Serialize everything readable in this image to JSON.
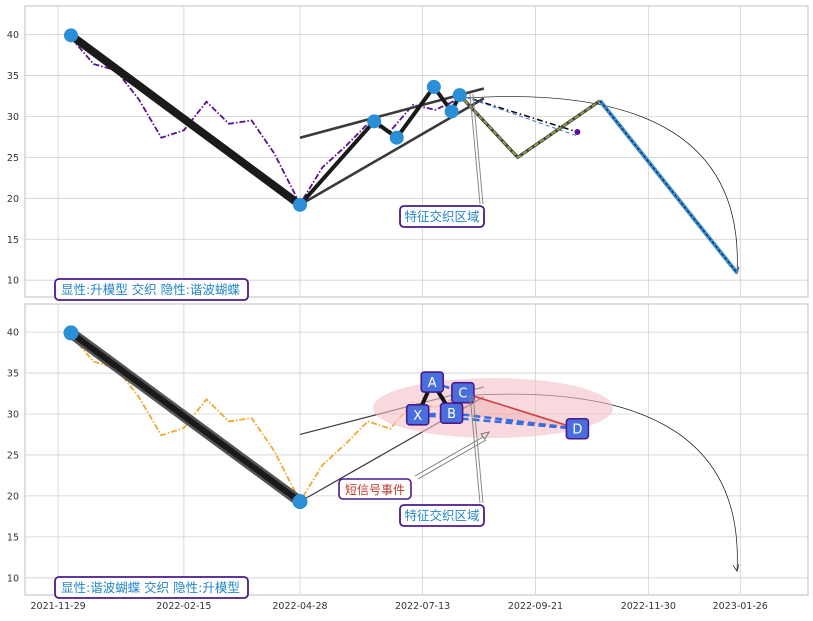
{
  "x_ticks": [
    "2021-11-29",
    "2022-02-15",
    "2022-04-28",
    "2022-07-13",
    "2022-09-21",
    "2022-11-30",
    "2023-01-26"
  ],
  "y_ticks": [
    "10",
    "15",
    "20",
    "25",
    "30",
    "35",
    "40"
  ],
  "colors": {
    "grid": "#d0d0d0",
    "frame": "#bfbfbf",
    "tick_text": "#333333",
    "thick_line": "#1a1a1a",
    "pivot_dot": "#2a8fd6",
    "top_price": "#5b0f8f",
    "bottom_price": "#f0a92d",
    "caption_text": "#2386c9",
    "caption_border": "#4a1a8c",
    "label_box": "#4a6fdc",
    "dashed_blue": "#3a6ee0",
    "ellipse_fill": "#f3c2c8",
    "signal_text": "#c0392b",
    "zigzag_green": "#8aa84a",
    "forecast_blue": "#3a8fd6"
  },
  "chart_data": [
    {
      "type": "line",
      "panel": "top",
      "caption": "显性:升模型 交织 隐性:谐波蝴蝶",
      "annotation": "特征交织区域",
      "x_domain": [
        "2021-12-01",
        "2023-02-10"
      ],
      "ylim": [
        8.5,
        42.5
      ],
      "price_series": {
        "x": [
          "2021-12-07",
          "2021-12-21",
          "2022-01-04",
          "2022-01-18",
          "2022-02-01",
          "2022-02-15",
          "2022-03-01",
          "2022-03-15",
          "2022-03-29",
          "2022-04-12",
          "2022-04-28",
          "2022-05-12",
          "2022-05-26",
          "2022-06-09",
          "2022-06-23",
          "2022-07-07",
          "2022-07-21",
          "2022-08-04"
        ],
        "values": [
          39.6,
          36.4,
          35.6,
          32.1,
          27.4,
          28.3,
          31.8,
          29.1,
          29.5,
          25.5,
          19.3,
          23.8,
          26.3,
          29.1,
          28.2,
          31.4,
          30.8,
          32.1
        ]
      },
      "pattern_points": [
        {
          "x": "2021-12-07",
          "y": 39.9
        },
        {
          "x": "2022-04-28",
          "y": 19.2
        },
        {
          "x": "2022-06-13",
          "y": 29.4
        },
        {
          "x": "2022-06-27",
          "y": 27.4
        },
        {
          "x": "2022-07-20",
          "y": 33.6
        },
        {
          "x": "2022-07-31",
          "y": 30.6
        },
        {
          "x": "2022-08-05",
          "y": 32.6
        }
      ],
      "trend_lines": [
        {
          "from": {
            "x": "2022-04-28",
            "y": 27.4
          },
          "to": {
            "x": "2022-08-20",
            "y": 33.4
          }
        },
        {
          "from": {
            "x": "2022-04-28",
            "y": 19.2
          },
          "to": {
            "x": "2022-08-20",
            "y": 32.2
          }
        }
      ],
      "forecast_zigzag": [
        {
          "x": "2022-08-05",
          "y": 32.6
        },
        {
          "x": "2022-09-10",
          "y": 25.0
        },
        {
          "x": "2022-10-31",
          "y": 31.9
        },
        {
          "x": "2023-01-24",
          "y": 10.9
        }
      ],
      "dash_dot_target": {
        "x": "2022-10-17",
        "y": 28.1
      },
      "arc": {
        "start": {
          "x": "2022-08-05",
          "y": 32.2
        },
        "end": {
          "x": "2023-01-24",
          "y": 10.8
        }
      }
    },
    {
      "type": "line",
      "panel": "bottom",
      "caption": "显性:谐波蝴蝶 交织 隐性:升模型",
      "annotations": [
        "特征交织区域",
        "短信号事件"
      ],
      "x_domain": [
        "2021-12-01",
        "2023-02-10"
      ],
      "ylim": [
        8.5,
        43.5
      ],
      "price_series": {
        "x": [
          "2021-12-07",
          "2021-12-21",
          "2022-01-04",
          "2022-01-18",
          "2022-02-01",
          "2022-02-15",
          "2022-03-01",
          "2022-03-15",
          "2022-03-29",
          "2022-04-12",
          "2022-04-28",
          "2022-05-12",
          "2022-05-26",
          "2022-06-09",
          "2022-06-23",
          "2022-07-07",
          "2022-07-21",
          "2022-08-04"
        ],
        "values": [
          39.6,
          36.4,
          35.6,
          32.1,
          27.4,
          28.3,
          31.8,
          29.1,
          29.5,
          25.5,
          19.3,
          23.8,
          26.3,
          29.1,
          28.2,
          31.4,
          30.8,
          32.1
        ]
      },
      "pattern_points": [
        {
          "x": "2021-12-07",
          "y": 39.9
        },
        {
          "x": "2022-04-28",
          "y": 19.3
        }
      ],
      "harmonic_points": [
        {
          "label": "X",
          "x": "2022-07-10",
          "y": 29.9
        },
        {
          "label": "A",
          "x": "2022-07-19",
          "y": 33.9
        },
        {
          "label": "B",
          "x": "2022-07-31",
          "y": 30.1
        },
        {
          "label": "C",
          "x": "2022-08-07",
          "y": 32.6
        },
        {
          "label": "D",
          "x": "2022-10-17",
          "y": 28.2
        }
      ],
      "trend_lines": [
        {
          "from": {
            "x": "2022-04-28",
            "y": 27.5
          },
          "to": {
            "x": "2022-08-20",
            "y": 33.3
          }
        },
        {
          "from": {
            "x": "2022-04-28",
            "y": 19.3
          },
          "to": {
            "x": "2022-08-20",
            "y": 32.1
          }
        }
      ],
      "arc": {
        "start": {
          "x": "2022-08-05",
          "y": 32.2
        },
        "end": {
          "x": "2023-01-24",
          "y": 10.8
        }
      }
    }
  ]
}
